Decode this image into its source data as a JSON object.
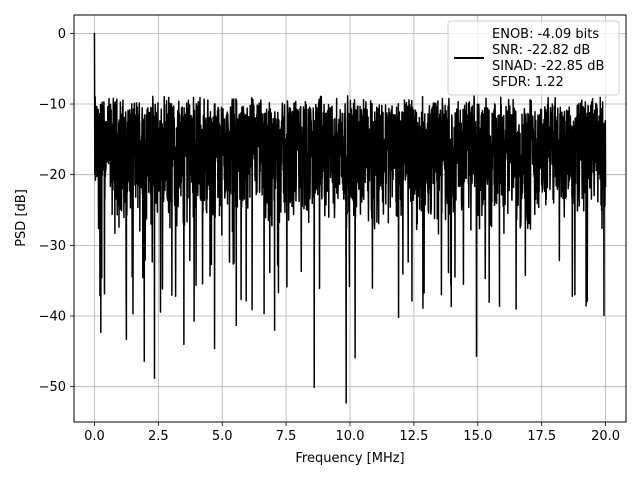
{
  "chart_data": {
    "type": "line",
    "xlabel": "Frequency [MHz]",
    "ylabel": "PSD [dB]",
    "xlim": [
      -0.8,
      20.8
    ],
    "ylim": [
      -55,
      2.6
    ],
    "x_ticks": [
      0.0,
      2.5,
      5.0,
      7.5,
      10.0,
      12.5,
      15.0,
      17.5,
      20.0
    ],
    "x_tick_labels": [
      "0.0",
      "2.5",
      "5.0",
      "7.5",
      "10.0",
      "12.5",
      "15.0",
      "17.5",
      "20.0"
    ],
    "y_ticks": [
      0,
      -10,
      -20,
      -30,
      -40,
      -50
    ],
    "y_tick_labels": [
      "0",
      "−10",
      "−20",
      "−30",
      "−40",
      "−50"
    ],
    "grid": true,
    "legend_position": "top-right",
    "legend_lines": [
      "ENOB: -4.09 bits",
      "SNR: -22.82 dB",
      "SINAD: -22.85 dB",
      "SFDR: 1.22"
    ],
    "series": [
      {
        "color": "#000000",
        "x_range": [
          0,
          20
        ],
        "typical_upper_envelope_db": -10,
        "typical_lower_envelope_db": -28,
        "peaks": [
          {
            "x": 0.0,
            "y": 0.0
          },
          {
            "x": 0.03,
            "y": -9.0
          }
        ],
        "notable_dips": [
          {
            "x": 0.25,
            "y": -42.3
          },
          {
            "x": 1.25,
            "y": -43.3
          },
          {
            "x": 1.95,
            "y": -46.4
          },
          {
            "x": 2.35,
            "y": -48.8
          },
          {
            "x": 3.5,
            "y": -44.0
          },
          {
            "x": 3.9,
            "y": -40.7
          },
          {
            "x": 4.7,
            "y": -44.6
          },
          {
            "x": 5.55,
            "y": -41.3
          },
          {
            "x": 7.05,
            "y": -42.0
          },
          {
            "x": 8.6,
            "y": -50.1
          },
          {
            "x": 9.85,
            "y": -52.3
          },
          {
            "x": 10.2,
            "y": -45.9
          },
          {
            "x": 11.9,
            "y": -40.2
          },
          {
            "x": 14.95,
            "y": -45.7
          },
          {
            "x": 15.85,
            "y": -38.6
          },
          {
            "x": 16.5,
            "y": -39.0
          },
          {
            "x": 18.7,
            "y": -37.2
          }
        ]
      }
    ]
  }
}
